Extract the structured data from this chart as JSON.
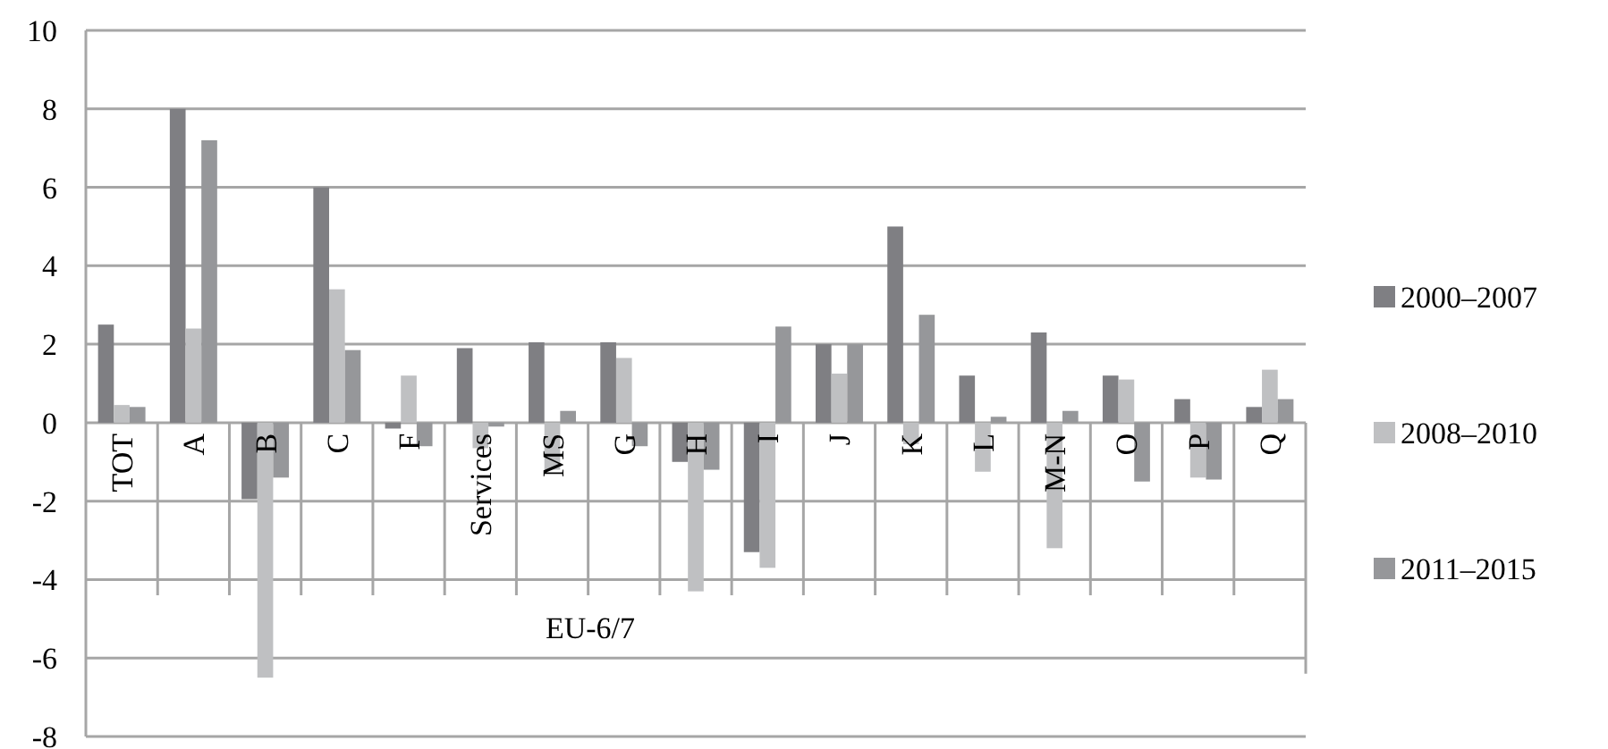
{
  "chart_data": {
    "type": "bar",
    "categories": [
      "TOT",
      "A",
      "B",
      "C",
      "F",
      "Services",
      "MS",
      "G",
      "H",
      "I",
      "J",
      "K",
      "L",
      "M-N",
      "O",
      "P",
      "Q"
    ],
    "series": [
      {
        "name": "2000–2007",
        "color": "#7f7f83",
        "values": [
          2.5,
          8.0,
          -1.95,
          6.0,
          -0.15,
          1.9,
          2.05,
          2.05,
          -1.0,
          -3.3,
          2.0,
          5.0,
          1.2,
          2.3,
          1.2,
          0.6,
          0.4
        ]
      },
      {
        "name": "2008–2010",
        "color": "#bfc0c2",
        "values": [
          0.45,
          2.4,
          -6.5,
          3.4,
          1.2,
          -0.65,
          -1.2,
          1.65,
          -4.3,
          -3.7,
          1.25,
          -0.55,
          -1.25,
          -3.2,
          1.1,
          -1.4,
          1.35
        ]
      },
      {
        "name": "2011–2015",
        "color": "#96979a",
        "values": [
          0.4,
          7.2,
          -1.4,
          1.85,
          -0.6,
          -0.1,
          0.3,
          -0.6,
          -1.2,
          2.45,
          2.0,
          2.75,
          0.15,
          0.3,
          -1.5,
          -1.45,
          0.6
        ]
      }
    ],
    "annotations": [
      "EU-6/7"
    ],
    "ylim": [
      -8,
      10
    ],
    "yticks": [
      -8,
      -6,
      -4,
      -2,
      0,
      2,
      4,
      6,
      8,
      10
    ],
    "grid": "y",
    "legend": "right"
  }
}
